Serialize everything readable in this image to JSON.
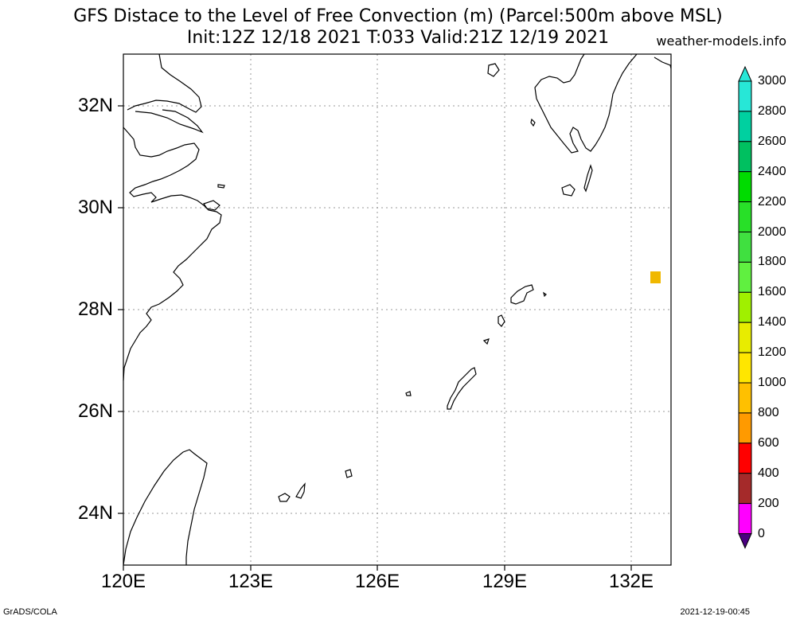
{
  "header": {
    "title_line1": "GFS Distace to the Level of Free Convection (m) (Parcel:500m above MSL)",
    "title_line2": "Init:12Z 12/18 2021 T:033 Valid:21Z 12/19 2021",
    "site": "weather-models.info"
  },
  "map": {
    "lat_labels": [
      "32N",
      "30N",
      "28N",
      "26N",
      "24N"
    ],
    "lon_labels": [
      "120E",
      "123E",
      "126E",
      "129E",
      "132E"
    ],
    "extent": {
      "lon_min": 120,
      "lon_max": 133,
      "lat_min": 23,
      "lat_max": 33
    },
    "lat_ticks": [
      32,
      30,
      28,
      26,
      24
    ],
    "lon_ticks": [
      120,
      123,
      126,
      129,
      132
    ],
    "grid": "dotted",
    "features": [
      {
        "name": "field-patch",
        "lon": 132.6,
        "lat": 28.6,
        "value_range": "1000-1200",
        "color": "#f0b800"
      }
    ]
  },
  "colorbar": {
    "labels": [
      "3000",
      "2800",
      "2600",
      "2400",
      "2200",
      "2000",
      "1800",
      "1600",
      "1400",
      "1200",
      "1000",
      "800",
      "600",
      "400",
      "200",
      "0"
    ],
    "colors": [
      "#27e7d7",
      "#00d0a0",
      "#00c060",
      "#00dc00",
      "#28e028",
      "#40e040",
      "#60f040",
      "#a0f000",
      "#e8ec00",
      "#ffe600",
      "#ffc000",
      "#ff9a00",
      "#ff0000",
      "#a52a2a",
      "#ff00ff",
      "#4b0082"
    ],
    "arrow_top": "#27e7d7",
    "arrow_bottom": "#4b0082"
  },
  "footer": {
    "left": "GrADS/COLA",
    "right": "2021-12-19-00:45"
  }
}
